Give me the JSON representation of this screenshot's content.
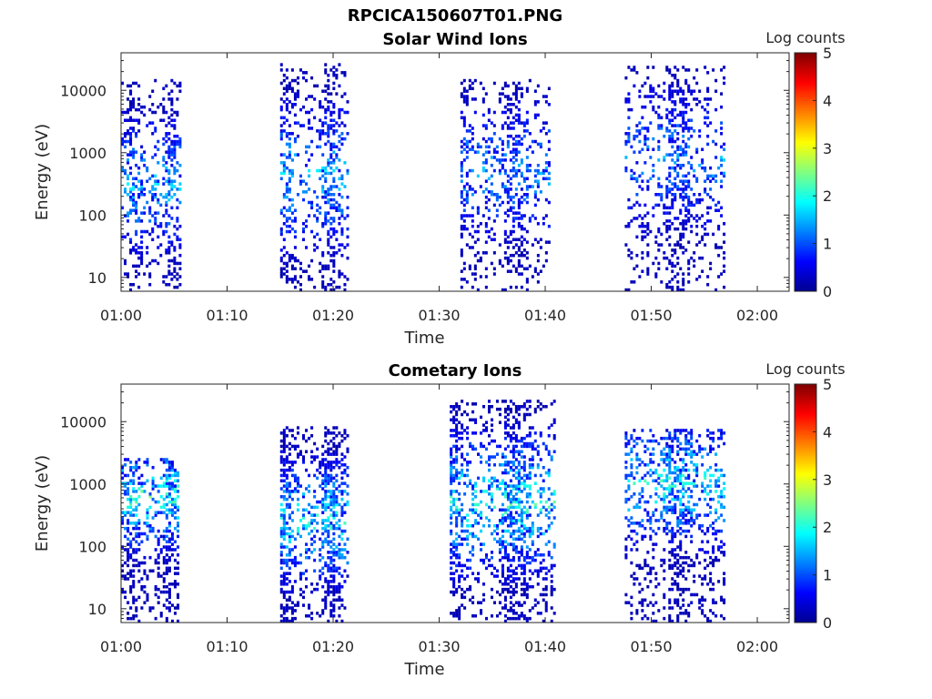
{
  "figure": {
    "title": "RPCICA150607T01.PNG"
  },
  "colors": {
    "axis": "#262626",
    "background": "#ffffff",
    "colormap": [
      "#00008f",
      "#0000ff",
      "#0080ff",
      "#00ffff",
      "#80ff80",
      "#ffff00",
      "#ff8000",
      "#ff0000",
      "#800000"
    ]
  },
  "chart_data": [
    {
      "type": "heatmap",
      "title": "Solar Wind Ions",
      "xlabel": "Time",
      "ylabel": "Energy (eV)",
      "yscale": "log",
      "xlim": [
        "01:00",
        "02:03"
      ],
      "ylim": [
        6,
        40000
      ],
      "xticks": [
        "01:00",
        "01:10",
        "01:20",
        "01:30",
        "01:40",
        "01:50",
        "02:00"
      ],
      "yticks": [
        10,
        100,
        1000,
        10000
      ],
      "ytick_labels": [
        "10",
        "100",
        "1000",
        "10000"
      ],
      "colorbar": {
        "label": "Log counts",
        "range": [
          0,
          5
        ],
        "ticks": [
          "0",
          "1",
          "2",
          "3",
          "4",
          "5"
        ]
      },
      "bursts": [
        {
          "t_start": "01:00",
          "t_end": "01:05.7",
          "e_min": 6,
          "e_max": 15000,
          "peak_log_counts": 2.0,
          "peak_energy": 300
        },
        {
          "t_start": "01:15.0",
          "t_end": "01:21.5",
          "e_min": 6,
          "e_max": 26000,
          "peak_log_counts": 2.0,
          "peak_energy": 400
        },
        {
          "t_start": "01:32.0",
          "t_end": "01:40.5",
          "e_min": 6,
          "e_max": 15000,
          "peak_log_counts": 1.8,
          "peak_energy": 500
        },
        {
          "t_start": "01:47.5",
          "t_end": "01:57.0",
          "e_min": 6,
          "e_max": 24000,
          "peak_log_counts": 1.7,
          "peak_energy": 800
        }
      ]
    },
    {
      "type": "heatmap",
      "title": "Cometary Ions",
      "xlabel": "Time",
      "ylabel": "Energy (eV)",
      "yscale": "log",
      "xlim": [
        "01:00",
        "02:03"
      ],
      "ylim": [
        6,
        40000
      ],
      "xticks": [
        "01:00",
        "01:10",
        "01:20",
        "01:30",
        "01:40",
        "01:50",
        "02:00"
      ],
      "yticks": [
        10,
        100,
        1000,
        10000
      ],
      "ytick_labels": [
        "10",
        "100",
        "1000",
        "10000"
      ],
      "colorbar": {
        "label": "Log counts",
        "range": [
          0,
          5
        ],
        "ticks": [
          "0",
          "1",
          "2",
          "3",
          "4",
          "5"
        ]
      },
      "bursts": [
        {
          "t_start": "01:00",
          "t_end": "01:05.5",
          "e_min": 6,
          "e_max": 2500,
          "peak_log_counts": 2.6,
          "peak_energy": 600
        },
        {
          "t_start": "01:15.0",
          "t_end": "01:21.5",
          "e_min": 6,
          "e_max": 8000,
          "peak_log_counts": 2.4,
          "peak_energy": 250
        },
        {
          "t_start": "01:31.0",
          "t_end": "01:41.0",
          "e_min": 6,
          "e_max": 22000,
          "peak_log_counts": 2.5,
          "peak_energy": 500
        },
        {
          "t_start": "01:47.5",
          "t_end": "01:57.0",
          "e_min": 6,
          "e_max": 7500,
          "peak_log_counts": 2.4,
          "peak_energy": 1000
        }
      ]
    }
  ]
}
